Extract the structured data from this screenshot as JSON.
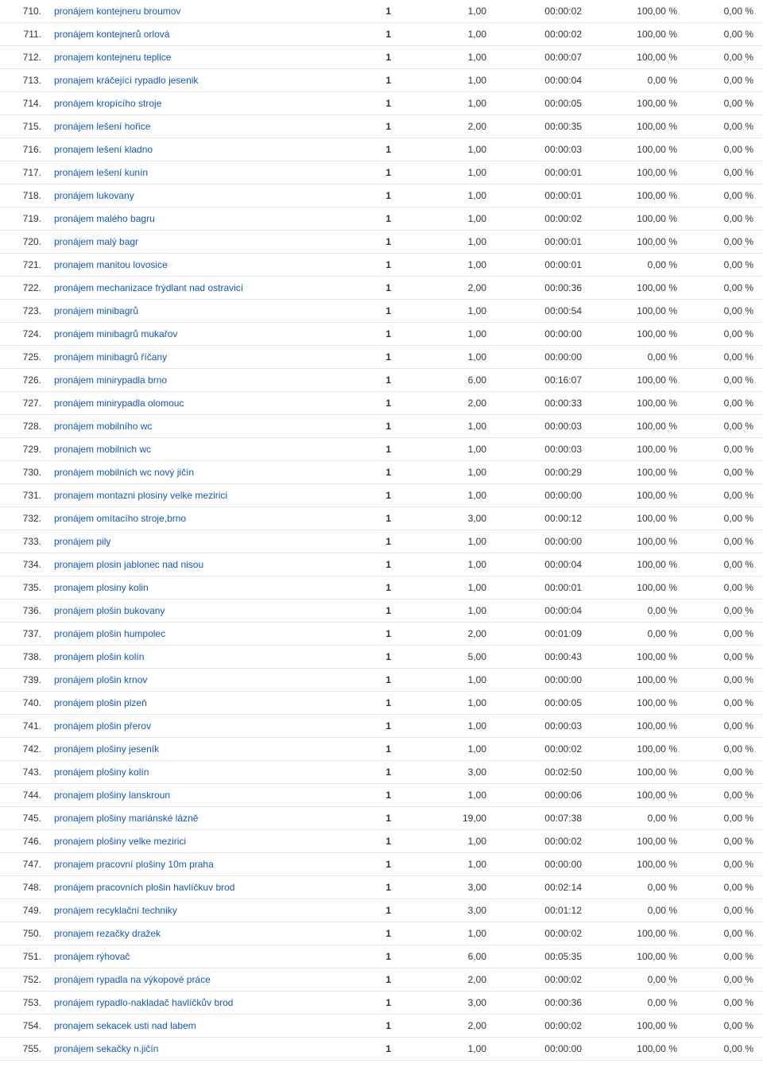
{
  "colors": {
    "link": "#1155cc",
    "text": "#333333",
    "border": "#e5e5e5",
    "background": "#ffffff"
  },
  "table": {
    "rows": [
      {
        "idx": "710.",
        "keyword": "pronájem kontejneru broumov",
        "c1": "1",
        "c2": "1,00",
        "time": "00:00:02",
        "pct1": "100,00 %",
        "pct2": "0,00 %"
      },
      {
        "idx": "711.",
        "keyword": "pronájem kontejnerů orlová",
        "c1": "1",
        "c2": "1,00",
        "time": "00:00:02",
        "pct1": "100,00 %",
        "pct2": "0,00 %"
      },
      {
        "idx": "712.",
        "keyword": "pronajem kontejneru teplice",
        "c1": "1",
        "c2": "1,00",
        "time": "00:00:07",
        "pct1": "100,00 %",
        "pct2": "0,00 %"
      },
      {
        "idx": "713.",
        "keyword": "pronajem kráčející rypadlo jesenik",
        "c1": "1",
        "c2": "1,00",
        "time": "00:00:04",
        "pct1": "0,00 %",
        "pct2": "0,00 %"
      },
      {
        "idx": "714.",
        "keyword": "pronájem kropícího stroje",
        "c1": "1",
        "c2": "1,00",
        "time": "00:00:05",
        "pct1": "100,00 %",
        "pct2": "0,00 %"
      },
      {
        "idx": "715.",
        "keyword": "pronájem lešení hořice",
        "c1": "1",
        "c2": "2,00",
        "time": "00:00:35",
        "pct1": "100,00 %",
        "pct2": "0,00 %"
      },
      {
        "idx": "716.",
        "keyword": "pronajem lešení kladno",
        "c1": "1",
        "c2": "1,00",
        "time": "00:00:03",
        "pct1": "100,00 %",
        "pct2": "0,00 %"
      },
      {
        "idx": "717.",
        "keyword": "pronájem lešení kunín",
        "c1": "1",
        "c2": "1,00",
        "time": "00:00:01",
        "pct1": "100,00 %",
        "pct2": "0,00 %"
      },
      {
        "idx": "718.",
        "keyword": "pronájem lukovany",
        "c1": "1",
        "c2": "1,00",
        "time": "00:00:01",
        "pct1": "100,00 %",
        "pct2": "0,00 %"
      },
      {
        "idx": "719.",
        "keyword": "pronájem malého bagru",
        "c1": "1",
        "c2": "1,00",
        "time": "00:00:02",
        "pct1": "100,00 %",
        "pct2": "0,00 %"
      },
      {
        "idx": "720.",
        "keyword": "pronájem malý bagr",
        "c1": "1",
        "c2": "1,00",
        "time": "00:00:01",
        "pct1": "100,00 %",
        "pct2": "0,00 %"
      },
      {
        "idx": "721.",
        "keyword": "pronajem manitou lovosice",
        "c1": "1",
        "c2": "1,00",
        "time": "00:00:01",
        "pct1": "0,00 %",
        "pct2": "0,00 %"
      },
      {
        "idx": "722.",
        "keyword": "pronájem mechanizace frýdlant nad ostravicí",
        "c1": "1",
        "c2": "2,00",
        "time": "00:00:36",
        "pct1": "100,00 %",
        "pct2": "0,00 %"
      },
      {
        "idx": "723.",
        "keyword": "pronájem minibagrů",
        "c1": "1",
        "c2": "1,00",
        "time": "00:00:54",
        "pct1": "100,00 %",
        "pct2": "0,00 %"
      },
      {
        "idx": "724.",
        "keyword": "pronájem minibagrů mukařov",
        "c1": "1",
        "c2": "1,00",
        "time": "00:00:00",
        "pct1": "100,00 %",
        "pct2": "0,00 %"
      },
      {
        "idx": "725.",
        "keyword": "pronájem minibagrů říčany",
        "c1": "1",
        "c2": "1,00",
        "time": "00:00:00",
        "pct1": "0,00 %",
        "pct2": "0,00 %"
      },
      {
        "idx": "726.",
        "keyword": "pronájem minirypadla brno",
        "c1": "1",
        "c2": "6,00",
        "time": "00:16:07",
        "pct1": "100,00 %",
        "pct2": "0,00 %"
      },
      {
        "idx": "727.",
        "keyword": "pronájem minirypadla olomouc",
        "c1": "1",
        "c2": "2,00",
        "time": "00:00:33",
        "pct1": "100,00 %",
        "pct2": "0,00 %"
      },
      {
        "idx": "728.",
        "keyword": "pronájem mobilního wc",
        "c1": "1",
        "c2": "1,00",
        "time": "00:00:03",
        "pct1": "100,00 %",
        "pct2": "0,00 %"
      },
      {
        "idx": "729.",
        "keyword": "pronajem mobilnich wc",
        "c1": "1",
        "c2": "1,00",
        "time": "00:00:03",
        "pct1": "100,00 %",
        "pct2": "0,00 %"
      },
      {
        "idx": "730.",
        "keyword": "pronájem mobilních wc nový jičín",
        "c1": "1",
        "c2": "1,00",
        "time": "00:00:29",
        "pct1": "100,00 %",
        "pct2": "0,00 %"
      },
      {
        "idx": "731.",
        "keyword": "pronajem montazni plosiny velke mezirici",
        "c1": "1",
        "c2": "1,00",
        "time": "00:00:00",
        "pct1": "100,00 %",
        "pct2": "0,00 %"
      },
      {
        "idx": "732.",
        "keyword": "pronájem omítacího stroje,brno",
        "c1": "1",
        "c2": "3,00",
        "time": "00:00:12",
        "pct1": "100,00 %",
        "pct2": "0,00 %"
      },
      {
        "idx": "733.",
        "keyword": "pronájem pily",
        "c1": "1",
        "c2": "1,00",
        "time": "00:00:00",
        "pct1": "100,00 %",
        "pct2": "0,00 %"
      },
      {
        "idx": "734.",
        "keyword": "pronajem plosin jablonec nad nisou",
        "c1": "1",
        "c2": "1,00",
        "time": "00:00:04",
        "pct1": "100,00 %",
        "pct2": "0,00 %"
      },
      {
        "idx": "735.",
        "keyword": "pronajem plosiny kolin",
        "c1": "1",
        "c2": "1,00",
        "time": "00:00:01",
        "pct1": "100,00 %",
        "pct2": "0,00 %"
      },
      {
        "idx": "736.",
        "keyword": "pronájem plošin bukovany",
        "c1": "1",
        "c2": "1,00",
        "time": "00:00:04",
        "pct1": "0,00 %",
        "pct2": "0,00 %"
      },
      {
        "idx": "737.",
        "keyword": "pronájem plošin humpolec",
        "c1": "1",
        "c2": "2,00",
        "time": "00:01:09",
        "pct1": "0,00 %",
        "pct2": "0,00 %"
      },
      {
        "idx": "738.",
        "keyword": "pronájem plošin kolín",
        "c1": "1",
        "c2": "5,00",
        "time": "00:00:43",
        "pct1": "100,00 %",
        "pct2": "0,00 %"
      },
      {
        "idx": "739.",
        "keyword": "pronájem plošin krnov",
        "c1": "1",
        "c2": "1,00",
        "time": "00:00:00",
        "pct1": "100,00 %",
        "pct2": "0,00 %"
      },
      {
        "idx": "740.",
        "keyword": "pronájem plošin plzeň",
        "c1": "1",
        "c2": "1,00",
        "time": "00:00:05",
        "pct1": "100,00 %",
        "pct2": "0,00 %"
      },
      {
        "idx": "741.",
        "keyword": "pronájem plošin přerov",
        "c1": "1",
        "c2": "1,00",
        "time": "00:00:03",
        "pct1": "100,00 %",
        "pct2": "0,00 %"
      },
      {
        "idx": "742.",
        "keyword": "pronájem plošiny jeseník",
        "c1": "1",
        "c2": "1,00",
        "time": "00:00:02",
        "pct1": "100,00 %",
        "pct2": "0,00 %"
      },
      {
        "idx": "743.",
        "keyword": "pronájem plošiny kolín",
        "c1": "1",
        "c2": "3,00",
        "time": "00:02:50",
        "pct1": "100,00 %",
        "pct2": "0,00 %"
      },
      {
        "idx": "744.",
        "keyword": "pronajem plošiny lanskroun",
        "c1": "1",
        "c2": "1,00",
        "time": "00:00:06",
        "pct1": "100,00 %",
        "pct2": "0,00 %"
      },
      {
        "idx": "745.",
        "keyword": "pronajem plošiny mariánské lázně",
        "c1": "1",
        "c2": "19,00",
        "time": "00:07:38",
        "pct1": "0,00 %",
        "pct2": "0,00 %"
      },
      {
        "idx": "746.",
        "keyword": "pronajem plošiny velke mezirici",
        "c1": "1",
        "c2": "1,00",
        "time": "00:00:02",
        "pct1": "100,00 %",
        "pct2": "0,00 %"
      },
      {
        "idx": "747.",
        "keyword": "pronajem pracovní plošiny 10m praha",
        "c1": "1",
        "c2": "1,00",
        "time": "00:00:00",
        "pct1": "100,00 %",
        "pct2": "0,00 %"
      },
      {
        "idx": "748.",
        "keyword": "pronájem pracovních plošin havlíčkuv brod",
        "c1": "1",
        "c2": "3,00",
        "time": "00:02:14",
        "pct1": "0,00 %",
        "pct2": "0,00 %"
      },
      {
        "idx": "749.",
        "keyword": "pronájem recyklační techniky",
        "c1": "1",
        "c2": "3,00",
        "time": "00:01:12",
        "pct1": "0,00 %",
        "pct2": "0,00 %"
      },
      {
        "idx": "750.",
        "keyword": "pronajem rezačky dražek",
        "c1": "1",
        "c2": "1,00",
        "time": "00:00:02",
        "pct1": "100,00 %",
        "pct2": "0,00 %"
      },
      {
        "idx": "751.",
        "keyword": "pronájem rýhovač",
        "c1": "1",
        "c2": "6,00",
        "time": "00:05:35",
        "pct1": "100,00 %",
        "pct2": "0,00 %"
      },
      {
        "idx": "752.",
        "keyword": "pronájem rypadla na výkopové práce",
        "c1": "1",
        "c2": "2,00",
        "time": "00:00:02",
        "pct1": "0,00 %",
        "pct2": "0,00 %"
      },
      {
        "idx": "753.",
        "keyword": "pronájem rypadlo-nakladač havlíčkův brod",
        "c1": "1",
        "c2": "3,00",
        "time": "00:00:36",
        "pct1": "0,00 %",
        "pct2": "0,00 %"
      },
      {
        "idx": "754.",
        "keyword": "pronajem sekacek usti nad labem",
        "c1": "1",
        "c2": "2,00",
        "time": "00:00:02",
        "pct1": "100,00 %",
        "pct2": "0,00 %"
      },
      {
        "idx": "755.",
        "keyword": "pronájem sekačky n.jičín",
        "c1": "1",
        "c2": "1,00",
        "time": "00:00:00",
        "pct1": "100,00 %",
        "pct2": "0,00 %"
      }
    ]
  }
}
